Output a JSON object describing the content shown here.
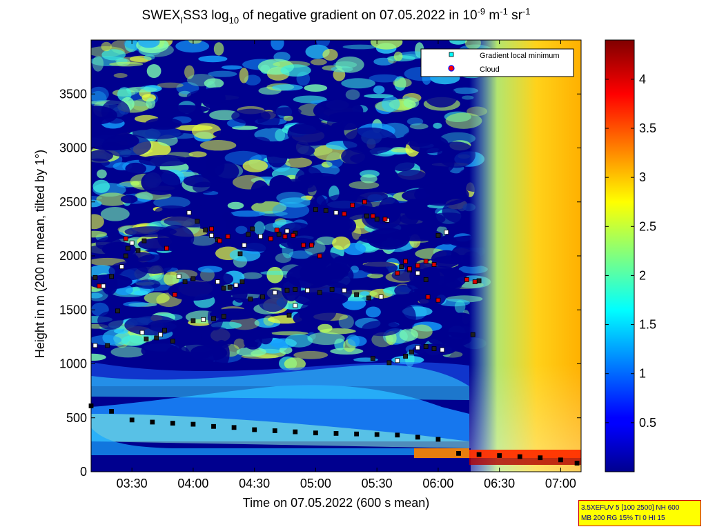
{
  "chart_data": {
    "type": "heatmap",
    "title_parts": {
      "a": "SWEX",
      "a_sub": "I",
      "b": "SS3 log",
      "b_sub": "10",
      "c": " of negative gradient on 07.05.2022 in 10",
      "c_sup": "-9",
      "d": " m",
      "d_sup": "-1",
      "e": " sr",
      "e_sup": "-1"
    },
    "xlabel": "Time on 07.05.2022 (600 s mean)",
    "ylabel": "Height in m (200 m mean, tilted by 1°)",
    "x_range": [
      "03:10",
      "07:10"
    ],
    "y_range": [
      0,
      4000
    ],
    "x_ticks": [
      "03:30",
      "04:00",
      "04:30",
      "05:00",
      "05:30",
      "06:00",
      "06:30",
      "07:00"
    ],
    "y_ticks": [
      0,
      500,
      1000,
      1500,
      2000,
      2500,
      3000,
      3500
    ],
    "colorbar": {
      "range": [
        0,
        4.4
      ],
      "ticks": [
        0.5,
        1,
        1.5,
        2,
        2.5,
        3,
        3.5,
        4
      ],
      "colormap": "jet"
    },
    "legend": {
      "position": "top-right",
      "entries": [
        {
          "label": "Gradient local minimum",
          "color": "#00ffff",
          "marker": "square"
        },
        {
          "label": "Cloud",
          "color": "#ff0000",
          "marker": "circle"
        }
      ]
    },
    "series": [
      {
        "name": "Gradient local minimum",
        "points": [
          [
            "03:12",
            1170
          ],
          [
            "03:18",
            1170
          ],
          [
            "03:12",
            1800
          ],
          [
            "03:16",
            1720
          ],
          [
            "03:20",
            1810
          ],
          [
            "03:23",
            1490
          ],
          [
            "03:25",
            1900
          ],
          [
            "03:27",
            2000
          ],
          [
            "03:28",
            2070
          ],
          [
            "03:30",
            2120
          ],
          [
            "03:33",
            2050
          ],
          [
            "03:36",
            2140
          ],
          [
            "03:35",
            1290
          ],
          [
            "03:37",
            1230
          ],
          [
            "03:42",
            1240
          ],
          [
            "03:44",
            1270
          ],
          [
            "03:46",
            1310
          ],
          [
            "03:50",
            1210
          ],
          [
            "03:53",
            1810
          ],
          [
            "03:56",
            1760
          ],
          [
            "04:00",
            1790
          ],
          [
            "03:58",
            2400
          ],
          [
            "04:02",
            2320
          ],
          [
            "04:06",
            2240
          ],
          [
            "04:09",
            2190
          ],
          [
            "04:12",
            2150
          ],
          [
            "04:00",
            1400
          ],
          [
            "04:05",
            1410
          ],
          [
            "04:10",
            1420
          ],
          [
            "04:15",
            1440
          ],
          [
            "04:12",
            1760
          ],
          [
            "04:15",
            1700
          ],
          [
            "04:18",
            1710
          ],
          [
            "04:21",
            1730
          ],
          [
            "04:24",
            1760
          ],
          [
            "04:23",
            2020
          ],
          [
            "04:25",
            2100
          ],
          [
            "04:27",
            2200
          ],
          [
            "04:29",
            2250
          ],
          [
            "04:33",
            2180
          ],
          [
            "04:28",
            1600
          ],
          [
            "04:34",
            1620
          ],
          [
            "04:40",
            1660
          ],
          [
            "04:46",
            1680
          ],
          [
            "04:50",
            1690
          ],
          [
            "04:56",
            1680
          ],
          [
            "05:02",
            1660
          ],
          [
            "05:08",
            1690
          ],
          [
            "05:14",
            1680
          ],
          [
            "05:20",
            1640
          ],
          [
            "05:26",
            1610
          ],
          [
            "05:32",
            1620
          ],
          [
            "04:38",
            2160
          ],
          [
            "04:42",
            2200
          ],
          [
            "04:46",
            2230
          ],
          [
            "04:50",
            2210
          ],
          [
            "04:47",
            1450
          ],
          [
            "04:50",
            1540
          ],
          [
            "05:00",
            2430
          ],
          [
            "05:05",
            2420
          ],
          [
            "05:10",
            2400
          ],
          [
            "05:25",
            2370
          ],
          [
            "05:30",
            2340
          ],
          [
            "05:35",
            2330
          ],
          [
            "05:28",
            1050
          ],
          [
            "05:36",
            1010
          ],
          [
            "05:40",
            1030
          ],
          [
            "05:44",
            1070
          ],
          [
            "05:47",
            1110
          ],
          [
            "05:50",
            1150
          ],
          [
            "05:54",
            1160
          ],
          [
            "05:58",
            1140
          ],
          [
            "06:02",
            1130
          ],
          [
            "05:42",
            1900
          ],
          [
            "05:46",
            1870
          ],
          [
            "05:50",
            1840
          ],
          [
            "05:54",
            1780
          ],
          [
            "06:00",
            2190
          ],
          [
            "06:04",
            2220
          ],
          [
            "06:17",
            1270
          ],
          [
            "06:20",
            1770
          ],
          [
            "03:10",
            610
          ],
          [
            "03:20",
            560
          ],
          [
            "03:30",
            480
          ],
          [
            "03:40",
            460
          ],
          [
            "03:50",
            450
          ],
          [
            "04:00",
            440
          ],
          [
            "04:10",
            420
          ],
          [
            "04:20",
            410
          ],
          [
            "04:30",
            390
          ],
          [
            "04:40",
            380
          ],
          [
            "04:50",
            370
          ],
          [
            "05:00",
            360
          ],
          [
            "05:10",
            355
          ],
          [
            "05:20",
            350
          ],
          [
            "05:30",
            345
          ],
          [
            "05:40",
            340
          ],
          [
            "05:50",
            320
          ],
          [
            "06:00",
            300
          ],
          [
            "06:10",
            170
          ],
          [
            "06:20",
            160
          ],
          [
            "06:30",
            150
          ],
          [
            "06:40",
            140
          ],
          [
            "06:50",
            130
          ],
          [
            "07:00",
            110
          ],
          [
            "07:08",
            80
          ]
        ]
      },
      {
        "name": "Cloud",
        "points": [
          [
            "03:14",
            1720
          ],
          [
            "03:27",
            2160
          ],
          [
            "03:47",
            2070
          ],
          [
            "03:51",
            1640
          ],
          [
            "04:09",
            2250
          ],
          [
            "04:13",
            2140
          ],
          [
            "04:17",
            2180
          ],
          [
            "04:38",
            2160
          ],
          [
            "04:41",
            2240
          ],
          [
            "04:45",
            2180
          ],
          [
            "04:49",
            2190
          ],
          [
            "04:54",
            2100
          ],
          [
            "04:58",
            2100
          ],
          [
            "05:02",
            2000
          ],
          [
            "05:14",
            2390
          ],
          [
            "05:18",
            2470
          ],
          [
            "05:24",
            2500
          ],
          [
            "05:28",
            2370
          ],
          [
            "05:34",
            2340
          ],
          [
            "05:40",
            1840
          ],
          [
            "05:44",
            1950
          ],
          [
            "05:46",
            1880
          ],
          [
            "05:50",
            1910
          ],
          [
            "05:54",
            1950
          ],
          [
            "05:58",
            1920
          ],
          [
            "05:55",
            1620
          ],
          [
            "06:00",
            1590
          ],
          [
            "06:14",
            1780
          ],
          [
            "06:18",
            1760
          ]
        ]
      }
    ]
  },
  "info_box": {
    "line1": "3.5XEFUV 5 [100 2500] NH 600",
    "line2": "MB 200 RG 15% TI 0 HI 15"
  }
}
